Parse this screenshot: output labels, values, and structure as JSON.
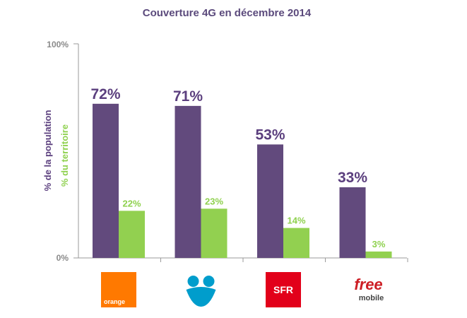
{
  "chart_data": {
    "type": "bar",
    "title": "Couverture 4G en décembre 2014",
    "y_axis_label_primary": "% de la population",
    "y_axis_label_secondary": "% du territoire",
    "ylim": [
      0,
      100
    ],
    "y_ticks": [
      "0%",
      "100%"
    ],
    "categories": [
      "orange",
      "Bouygues Telecom",
      "SFR",
      "free mobile"
    ],
    "series": [
      {
        "name": "% de la population",
        "color": "#624a7d",
        "values": [
          72,
          71,
          53,
          33
        ],
        "labels": [
          "72%",
          "71%",
          "53%",
          "33%"
        ]
      },
      {
        "name": "% du territoire",
        "color": "#92d050",
        "values": [
          22,
          23,
          14,
          3
        ],
        "labels": [
          "22%",
          "23%",
          "14%",
          "3%"
        ]
      }
    ],
    "grid": false,
    "logos": [
      {
        "name": "orange",
        "text": "orange",
        "mark": "",
        "bg": "#ff7900"
      },
      {
        "name": "bouygues",
        "text": "",
        "mark": "",
        "bg": "#009dcc"
      },
      {
        "name": "sfr",
        "text": "SFR",
        "mark": "",
        "bg": "#e2001a"
      },
      {
        "name": "free",
        "text": "free",
        "mark": "mobile",
        "bg": "#cd1e25"
      }
    ]
  }
}
